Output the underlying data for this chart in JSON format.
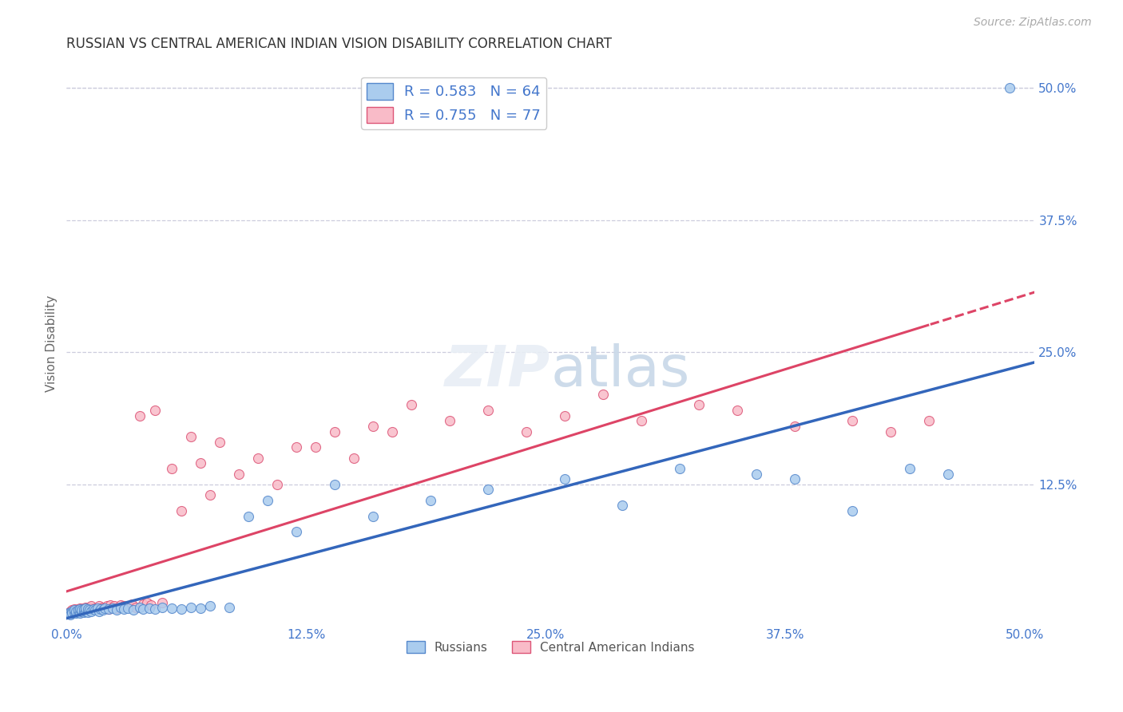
{
  "title": "RUSSIAN VS CENTRAL AMERICAN INDIAN VISION DISABILITY CORRELATION CHART",
  "source": "Source: ZipAtlas.com",
  "ylabel": "Vision Disability",
  "xlim": [
    0.0,
    0.505
  ],
  "ylim": [
    -0.008,
    0.525
  ],
  "xtick_labels": [
    "0.0%",
    "12.5%",
    "25.0%",
    "37.5%",
    "50.0%"
  ],
  "xtick_vals": [
    0.0,
    0.125,
    0.25,
    0.375,
    0.5
  ],
  "ytick_labels": [
    "12.5%",
    "25.0%",
    "37.5%",
    "50.0%"
  ],
  "ytick_vals": [
    0.125,
    0.25,
    0.375,
    0.5
  ],
  "blue_fill": "#aaccee",
  "pink_fill": "#f9bbc8",
  "blue_edge": "#5588cc",
  "pink_edge": "#dd5577",
  "blue_line": "#3366bb",
  "pink_line": "#dd4466",
  "axis_tick_color": "#4477cc",
  "grid_color": "#ccccdd",
  "title_color": "#333333",
  "source_color": "#aaaaaa",
  "R_blue": 0.583,
  "N_blue": 64,
  "R_pink": 0.755,
  "N_pink": 77,
  "blue_x": [
    0.001,
    0.002,
    0.002,
    0.003,
    0.003,
    0.004,
    0.004,
    0.005,
    0.005,
    0.006,
    0.006,
    0.007,
    0.007,
    0.008,
    0.008,
    0.009,
    0.009,
    0.01,
    0.01,
    0.011,
    0.011,
    0.012,
    0.013,
    0.014,
    0.015,
    0.016,
    0.017,
    0.018,
    0.019,
    0.02,
    0.022,
    0.024,
    0.026,
    0.028,
    0.03,
    0.032,
    0.035,
    0.038,
    0.04,
    0.043,
    0.046,
    0.05,
    0.055,
    0.06,
    0.065,
    0.07,
    0.075,
    0.085,
    0.095,
    0.105,
    0.12,
    0.14,
    0.16,
    0.19,
    0.22,
    0.26,
    0.29,
    0.32,
    0.36,
    0.38,
    0.41,
    0.44,
    0.46,
    0.492
  ],
  "blue_y": [
    0.003,
    0.004,
    0.002,
    0.005,
    0.003,
    0.004,
    0.006,
    0.003,
    0.005,
    0.004,
    0.006,
    0.003,
    0.007,
    0.005,
    0.006,
    0.004,
    0.007,
    0.005,
    0.008,
    0.004,
    0.007,
    0.006,
    0.005,
    0.007,
    0.006,
    0.008,
    0.005,
    0.007,
    0.006,
    0.008,
    0.007,
    0.008,
    0.006,
    0.009,
    0.007,
    0.008,
    0.006,
    0.009,
    0.007,
    0.008,
    0.007,
    0.009,
    0.008,
    0.007,
    0.009,
    0.008,
    0.01,
    0.009,
    0.095,
    0.11,
    0.08,
    0.125,
    0.095,
    0.11,
    0.12,
    0.13,
    0.105,
    0.14,
    0.135,
    0.13,
    0.1,
    0.14,
    0.135,
    0.5
  ],
  "pink_x": [
    0.001,
    0.002,
    0.002,
    0.003,
    0.003,
    0.004,
    0.004,
    0.005,
    0.005,
    0.006,
    0.006,
    0.007,
    0.007,
    0.008,
    0.008,
    0.009,
    0.009,
    0.01,
    0.01,
    0.011,
    0.011,
    0.012,
    0.012,
    0.013,
    0.013,
    0.014,
    0.015,
    0.016,
    0.017,
    0.018,
    0.019,
    0.02,
    0.021,
    0.022,
    0.023,
    0.024,
    0.025,
    0.026,
    0.028,
    0.03,
    0.032,
    0.034,
    0.036,
    0.038,
    0.04,
    0.042,
    0.044,
    0.046,
    0.05,
    0.055,
    0.06,
    0.065,
    0.07,
    0.075,
    0.08,
    0.09,
    0.1,
    0.11,
    0.12,
    0.13,
    0.14,
    0.15,
    0.16,
    0.17,
    0.18,
    0.2,
    0.22,
    0.24,
    0.26,
    0.28,
    0.3,
    0.33,
    0.35,
    0.38,
    0.41,
    0.43,
    0.45
  ],
  "pink_y": [
    0.003,
    0.005,
    0.004,
    0.006,
    0.004,
    0.005,
    0.007,
    0.004,
    0.006,
    0.005,
    0.007,
    0.004,
    0.008,
    0.005,
    0.007,
    0.005,
    0.008,
    0.006,
    0.009,
    0.005,
    0.008,
    0.006,
    0.009,
    0.007,
    0.01,
    0.007,
    0.008,
    0.007,
    0.01,
    0.008,
    0.009,
    0.008,
    0.01,
    0.007,
    0.011,
    0.009,
    0.01,
    0.008,
    0.011,
    0.01,
    0.01,
    0.012,
    0.009,
    0.19,
    0.012,
    0.013,
    0.011,
    0.195,
    0.013,
    0.14,
    0.1,
    0.17,
    0.145,
    0.115,
    0.165,
    0.135,
    0.15,
    0.125,
    0.16,
    0.16,
    0.175,
    0.15,
    0.18,
    0.175,
    0.2,
    0.185,
    0.195,
    0.175,
    0.19,
    0.21,
    0.185,
    0.2,
    0.195,
    0.18,
    0.185,
    0.175,
    0.185
  ]
}
